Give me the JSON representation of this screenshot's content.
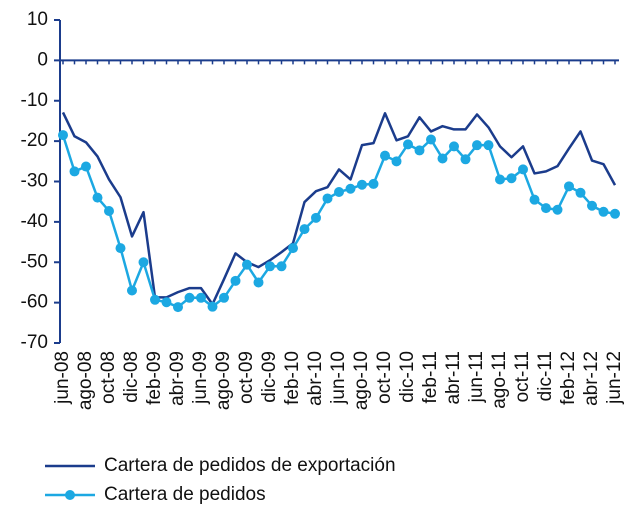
{
  "chart_data": {
    "type": "line",
    "categories": [
      "jun-08",
      null,
      "ago-08",
      null,
      "oct-08",
      null,
      "dic-08",
      null,
      "feb-09",
      null,
      "abr-09",
      null,
      "jun-09",
      null,
      "ago-09",
      null,
      "oct-09",
      null,
      "dic-09",
      null,
      "feb-10",
      null,
      "abr-10",
      null,
      "jun-10",
      null,
      "ago-10",
      null,
      "oct-10",
      null,
      "dic-10",
      null,
      "feb-11",
      null,
      "abr-11",
      null,
      "jun-11",
      null,
      "ago-11",
      null,
      "oct-11",
      null,
      "dic-11",
      null,
      "feb-12",
      null,
      "abr-12",
      null,
      "jun-12"
    ],
    "series": [
      {
        "name": "Cartera de pedidos de exportación",
        "color": "#1b3c8c",
        "marker": false,
        "values": [
          -12.9,
          -18.8,
          -20.3,
          -23.8,
          -29.5,
          -33.9,
          -43.6,
          -37.6,
          -58.7,
          -58.7,
          -57.4,
          -56.4,
          -56.4,
          -60.4,
          -54.2,
          -47.8,
          -50,
          -51.2,
          -49.5,
          -47.5,
          -45.3,
          -35.1,
          -32.4,
          -31.4,
          -27,
          -29.5,
          -21,
          -20.5,
          -13.1,
          -19.8,
          -18.8,
          -14.1,
          -17.6,
          -16.3,
          -17.1,
          -17.1,
          -13.4,
          -16.6,
          -21.3,
          -24,
          -21.3,
          -28,
          -27.5,
          -26.2,
          -21.8,
          -17.6,
          -24.8,
          -25.7,
          -30.9
        ]
      },
      {
        "name": "Cartera de pedidos",
        "color": "#1ca8e2",
        "marker": true,
        "values": [
          -18.5,
          -27.5,
          -26.3,
          -34,
          -37.3,
          -46.5,
          -57,
          -50,
          -59.3,
          -59.9,
          -61.1,
          -58.8,
          -58.8,
          -61,
          -58.8,
          -54.6,
          -50.6,
          -55,
          -51,
          -51,
          -46.5,
          -41.8,
          -39,
          -34.2,
          -32.6,
          -31.8,
          -30.8,
          -30.6,
          -23.6,
          -25,
          -20.8,
          -22.3,
          -19.6,
          -24.3,
          -21.3,
          -24.5,
          -21,
          -21,
          -29.5,
          -29.2,
          -27,
          -34.5,
          -36.6,
          -37,
          -31.2,
          -32.8,
          -36,
          -37.5,
          -38
        ]
      }
    ],
    "ylim": [
      -70,
      10
    ],
    "yticks": [
      10,
      0,
      -10,
      -20,
      -30,
      -40,
      -50,
      -60,
      -70
    ],
    "legend": "bottom"
  }
}
